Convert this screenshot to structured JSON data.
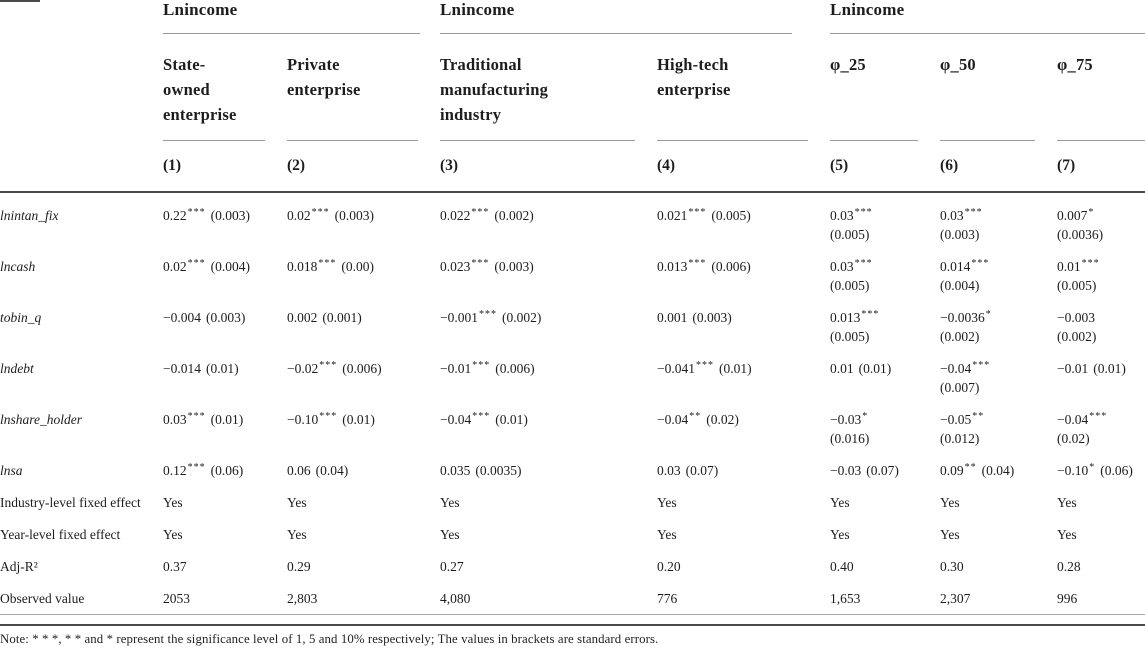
{
  "page": {
    "background": "#ffffff",
    "text_color": "#1d1d1d",
    "rule_dark": "#4a4a4a",
    "rule_light": "#9a9a9a"
  },
  "table": {
    "groups": [
      {
        "label": "Lnincome",
        "span": 2
      },
      {
        "label": "Lnincome",
        "span": 2
      },
      {
        "label": "Lnincome",
        "span": 3
      }
    ],
    "columns": [
      {
        "label": "State-owned enterprise",
        "number": "(1)"
      },
      {
        "label": "Private enterprise",
        "number": "(2)"
      },
      {
        "label": "Traditional manufacturing industry",
        "number": "(3)"
      },
      {
        "label": "High-tech enterprise",
        "number": "(4)"
      },
      {
        "label": "φ_25",
        "number": "(5)"
      },
      {
        "label": "φ_50",
        "number": "(6)"
      },
      {
        "label": "φ_75",
        "number": "(7)"
      }
    ],
    "rows": [
      {
        "label": "lnintan_fix",
        "italic": true,
        "cells": [
          {
            "v": "0.22",
            "s": "***",
            "se": "(0.003)"
          },
          {
            "v": "0.02",
            "s": "***",
            "se": "(0.003)"
          },
          {
            "v": "0.022",
            "s": "***",
            "se": "(0.002)"
          },
          {
            "v": "0.021",
            "s": "***",
            "se": "(0.005)"
          },
          {
            "v": "0.03",
            "s": "***",
            "se": "(0.005)",
            "wrap": true
          },
          {
            "v": "0.03",
            "s": "***",
            "se": "(0.003)",
            "wrap": true
          },
          {
            "v": "0.007",
            "s": "*",
            "se": "(0.0036)",
            "wrap": true
          }
        ]
      },
      {
        "label": "lncash",
        "italic": true,
        "cells": [
          {
            "v": "0.02",
            "s": "***",
            "se": "(0.004)"
          },
          {
            "v": "0.018",
            "s": "***",
            "se": "(0.00)"
          },
          {
            "v": "0.023",
            "s": "***",
            "se": "(0.003)"
          },
          {
            "v": "0.013",
            "s": "***",
            "se": "(0.006)"
          },
          {
            "v": "0.03",
            "s": "***",
            "se": "(0.005)",
            "wrap": true
          },
          {
            "v": "0.014",
            "s": "***",
            "se": "(0.004)",
            "wrap": true
          },
          {
            "v": "0.01",
            "s": "***",
            "se": "(0.005)",
            "wrap": true
          }
        ]
      },
      {
        "label": "tobin_q",
        "italic": true,
        "cells": [
          {
            "v": "−0.004",
            "s": "",
            "se": "(0.003)"
          },
          {
            "v": "0.002",
            "s": "",
            "se": "(0.001)"
          },
          {
            "v": "−0.001",
            "s": "***",
            "se": "(0.002)"
          },
          {
            "v": "0.001",
            "s": "",
            "se": "(0.003)"
          },
          {
            "v": "0.013",
            "s": "***",
            "se": "(0.005)",
            "wrap": true
          },
          {
            "v": "−0.0036",
            "s": "*",
            "se": "(0.002)",
            "wrap": true
          },
          {
            "v": "−0.003",
            "s": "",
            "se": "(0.002)",
            "wrap": true
          }
        ]
      },
      {
        "label": "lndebt",
        "italic": true,
        "cells": [
          {
            "v": "−0.014",
            "s": "",
            "se": "(0.01)"
          },
          {
            "v": "−0.02",
            "s": "***",
            "se": "(0.006)"
          },
          {
            "v": "−0.01",
            "s": "***",
            "se": "(0.006)"
          },
          {
            "v": "−0.041",
            "s": "***",
            "se": "(0.01)"
          },
          {
            "v": "0.01",
            "s": "",
            "se": "(0.01)"
          },
          {
            "v": "−0.04",
            "s": "***",
            "se": "(0.007)",
            "wrap": true
          },
          {
            "v": "−0.01",
            "s": "",
            "se": "(0.01)"
          }
        ]
      },
      {
        "label": "lnshare_holder",
        "italic": true,
        "cells": [
          {
            "v": "0.03",
            "s": "***",
            "se": "(0.01)"
          },
          {
            "v": "−0.10",
            "s": "***",
            "se": "(0.01)"
          },
          {
            "v": "−0.04",
            "s": "***",
            "se": "(0.01)"
          },
          {
            "v": "−0.04",
            "s": "**",
            "se": "(0.02)"
          },
          {
            "v": "−0.03",
            "s": "*",
            "se": "(0.016)",
            "wrap": true
          },
          {
            "v": "−0.05",
            "s": "**",
            "se": "(0.012)",
            "wrap": true
          },
          {
            "v": "−0.04",
            "s": "***",
            "se": "(0.02)",
            "wrap": true
          }
        ]
      },
      {
        "label": "lnsa",
        "italic": true,
        "cells": [
          {
            "v": "0.12",
            "s": "***",
            "se": "(0.06)"
          },
          {
            "v": "0.06",
            "s": "",
            "se": "(0.04)"
          },
          {
            "v": "0.035",
            "s": "",
            "se": "(0.0035)"
          },
          {
            "v": "0.03",
            "s": "",
            "se": "(0.07)"
          },
          {
            "v": "−0.03",
            "s": "",
            "se": "(0.07)"
          },
          {
            "v": "0.09",
            "s": "**",
            "se": "(0.04)"
          },
          {
            "v": "−0.10",
            "s": "*",
            "se": "(0.06)"
          }
        ]
      },
      {
        "label": "Industry-level fixed effect",
        "italic": false,
        "cells": [
          {
            "v": "Yes"
          },
          {
            "v": "Yes"
          },
          {
            "v": "Yes"
          },
          {
            "v": "Yes"
          },
          {
            "v": "Yes"
          },
          {
            "v": "Yes"
          },
          {
            "v": "Yes"
          }
        ]
      },
      {
        "label": "Year-level fixed effect",
        "italic": false,
        "cells": [
          {
            "v": "Yes"
          },
          {
            "v": "Yes"
          },
          {
            "v": "Yes"
          },
          {
            "v": "Yes"
          },
          {
            "v": "Yes"
          },
          {
            "v": "Yes"
          },
          {
            "v": "Yes"
          }
        ]
      },
      {
        "label": "Adj-R²",
        "italic": false,
        "cells": [
          {
            "v": "0.37"
          },
          {
            "v": "0.29"
          },
          {
            "v": "0.27"
          },
          {
            "v": "0.20"
          },
          {
            "v": "0.40"
          },
          {
            "v": "0.30"
          },
          {
            "v": "0.28"
          }
        ]
      },
      {
        "label": "Observed value",
        "italic": false,
        "cells": [
          {
            "v": "2053"
          },
          {
            "v": "2,803"
          },
          {
            "v": "4,080"
          },
          {
            "v": "776"
          },
          {
            "v": "1,653"
          },
          {
            "v": "2,307"
          },
          {
            "v": "996"
          }
        ]
      }
    ],
    "note": "Note: * * *, * * and * represent the significance level of 1, 5 and 10% respectively; The values in brackets are standard errors."
  }
}
